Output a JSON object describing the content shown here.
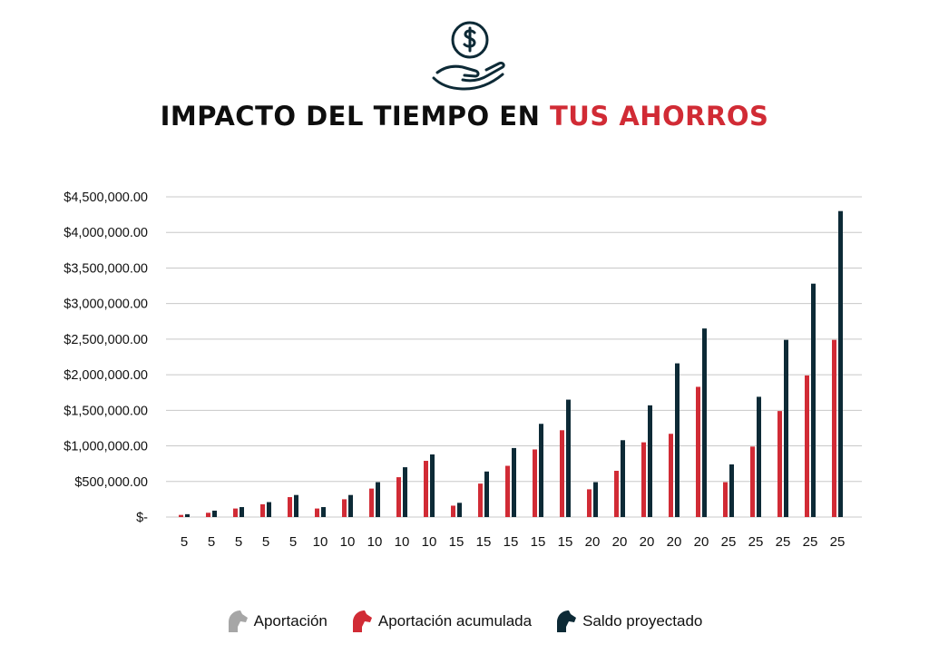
{
  "header": {
    "icon": "hand-holding-dollar-icon",
    "title_main": "IMPACTO DEL TIEMPO EN",
    "title_highlight": "TUS AHORROS"
  },
  "colors": {
    "aportacion": "#a6a6a6",
    "aportacion_acumulada": "#d12b35",
    "saldo_proyectado": "#0d2a36",
    "title_highlight": "#d12b35",
    "grid": "#c8c8c8",
    "icon": "#0d2a36"
  },
  "chart_data": {
    "type": "bar",
    "categories": [
      "5",
      "5",
      "5",
      "5",
      "5",
      "10",
      "10",
      "10",
      "10",
      "10",
      "15",
      "15",
      "15",
      "15",
      "15",
      "20",
      "20",
      "20",
      "20",
      "20",
      "25",
      "25",
      "25",
      "25",
      "25"
    ],
    "ylim": [
      0,
      4500000
    ],
    "yticks": [
      0,
      500000,
      1000000,
      1500000,
      2000000,
      2500000,
      3000000,
      3500000,
      4000000,
      4500000
    ],
    "ytick_labels": [
      "$-",
      "$500,000.00",
      "$1,000,000.00",
      "$1,500,000.00",
      "$2,000,000.00",
      "$2,500,000.00",
      "$3,000,000.00",
      "$3,500,000.00",
      "$4,000,000.00",
      "$4,500,000.00"
    ],
    "grid": true,
    "legend_position": "bottom",
    "series": [
      {
        "name": "Aportación",
        "color": "#a6a6a6",
        "values": [
          0,
          0,
          0,
          0,
          0,
          0,
          0,
          0,
          0,
          0,
          0,
          0,
          0,
          0,
          0,
          0,
          0,
          0,
          0,
          0,
          0,
          0,
          0,
          0,
          0
        ]
      },
      {
        "name": "Aportación acumulada",
        "color": "#d12b35",
        "values": [
          30000,
          60000,
          120000,
          180000,
          280000,
          120000,
          250000,
          400000,
          560000,
          790000,
          160000,
          470000,
          720000,
          950000,
          1220000,
          390000,
          650000,
          1050000,
          1170000,
          1830000,
          490000,
          990000,
          1490000,
          1990000,
          2490000
        ]
      },
      {
        "name": "Saldo proyectado",
        "color": "#0d2a36",
        "values": [
          40000,
          90000,
          140000,
          210000,
          310000,
          140000,
          310000,
          490000,
          700000,
          880000,
          200000,
          640000,
          970000,
          1310000,
          1650000,
          490000,
          1080000,
          1570000,
          2160000,
          2650000,
          740000,
          1690000,
          2490000,
          3280000,
          4300000
        ]
      }
    ]
  }
}
